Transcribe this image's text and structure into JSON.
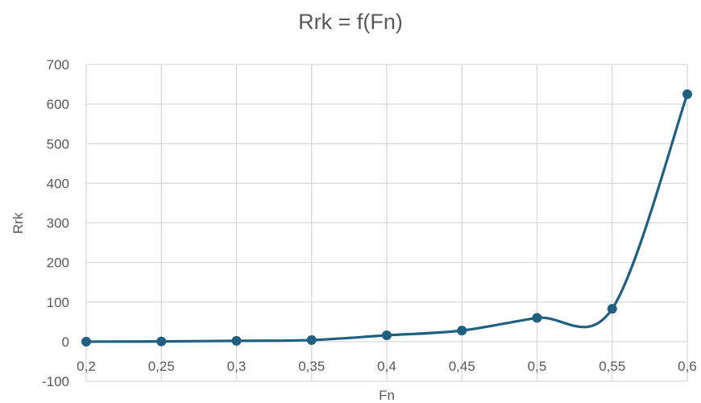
{
  "chart_data": {
    "type": "line",
    "title": "Rrk = f(Fn)",
    "xlabel": "Fn",
    "ylabel": "Rrk",
    "x": [
      0.2,
      0.25,
      0.3,
      0.35,
      0.4,
      0.45,
      0.5,
      0.55,
      0.6
    ],
    "x_tick_labels": [
      "0,2",
      "0,25",
      "0,3",
      "0,35",
      "0,4",
      "0,45",
      "0,5",
      "0,55",
      "0,6"
    ],
    "series": [
      {
        "values": [
          0,
          0.5,
          2,
          4,
          16,
          28,
          60,
          83,
          625
        ]
      }
    ],
    "ylim": [
      -100,
      700
    ],
    "y_ticks": [
      -100,
      0,
      100,
      200,
      300,
      400,
      500,
      600,
      700
    ],
    "y_tick_labels": [
      "-100",
      "0",
      "100",
      "200",
      "300",
      "400",
      "500",
      "600",
      "700"
    ],
    "xlim": [
      0.2,
      0.6
    ],
    "grid": true,
    "smooth": true,
    "legend": "none",
    "series_color": "#1f5f82",
    "grid_color": "#d9d9d9",
    "text_color": "#595959"
  }
}
